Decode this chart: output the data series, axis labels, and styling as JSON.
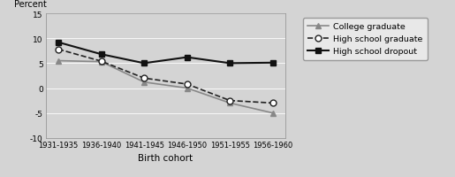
{
  "categories": [
    "1931-1935",
    "1936-1940",
    "1941-1945",
    "1946-1950",
    "1951-1955",
    "1956-1960"
  ],
  "college_graduate": [
    5.5,
    5.3,
    1.2,
    0.0,
    -3.0,
    -5.0
  ],
  "high_school_graduate": [
    7.8,
    5.4,
    2.0,
    0.8,
    -2.5,
    -3.0
  ],
  "high_school_dropout": [
    9.2,
    6.8,
    5.0,
    6.2,
    5.0,
    5.1
  ],
  "ylabel": "Percent",
  "xlabel": "Birth cohort",
  "ylim": [
    -10,
    15
  ],
  "yticks": [
    -10,
    -5,
    0,
    5,
    10,
    15
  ],
  "legend_labels": [
    "College graduate",
    "High school graduate",
    "High school dropout"
  ],
  "plot_bg_color": "#d4d4d4",
  "fig_bg_color": "#d4d4d4",
  "legend_bg_color": "#e8e8e8",
  "college_color": "#888888",
  "hs_grad_color": "#222222",
  "hs_dropout_color": "#111111",
  "grid_color": "#ffffff",
  "spine_color": "#999999"
}
